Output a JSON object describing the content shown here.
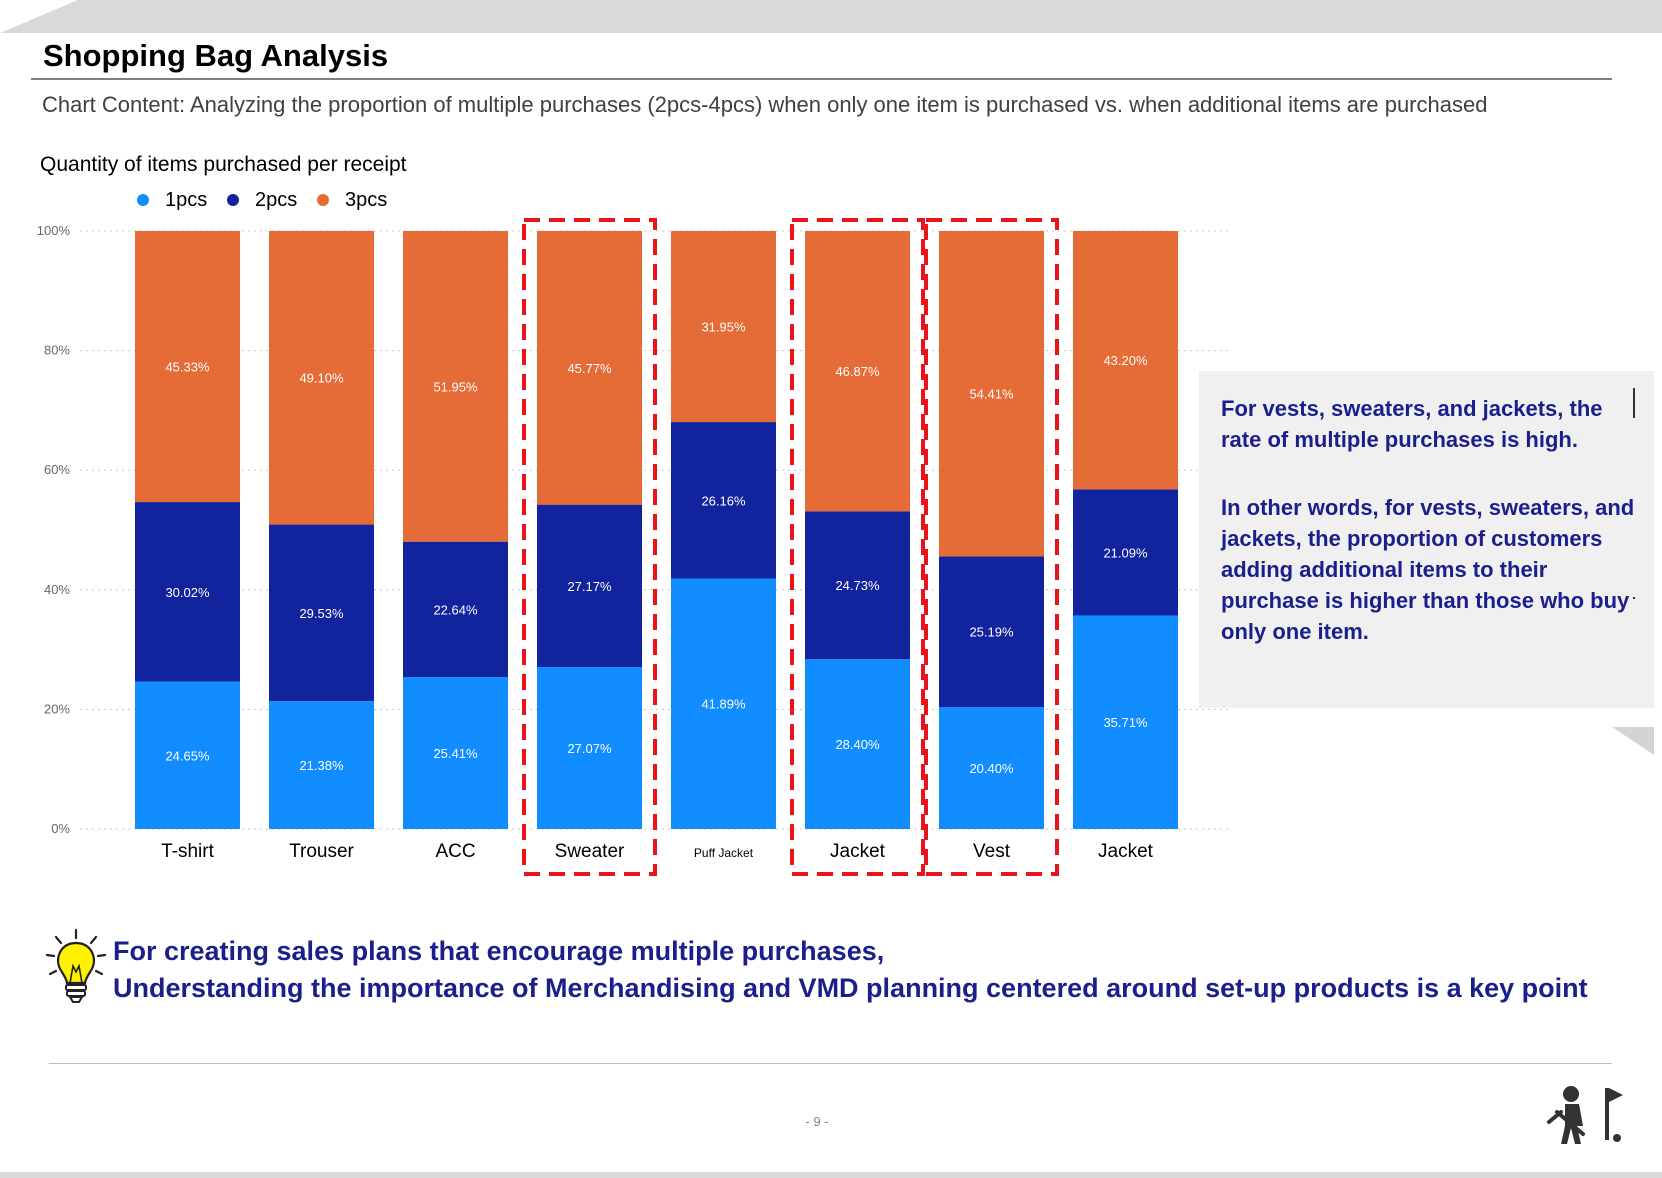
{
  "header": {
    "title": "Shopping Bag Analysis",
    "subtitle": "Chart Content: Analyzing the proportion of multiple purchases (2pcs-4pcs) when only one item is purchased vs. when additional items are purchased"
  },
  "chart_data": {
    "type": "bar",
    "stacked": true,
    "title": "Quantity of items purchased per receipt",
    "categories": [
      "T-shirt",
      "Trouser",
      "ACC",
      "Sweater",
      "Puff Jacket",
      "Jacket",
      "Vest",
      "Jacket"
    ],
    "series": [
      {
        "name": "1pcs",
        "color": "#118dff",
        "values": [
          24.65,
          21.38,
          25.41,
          27.07,
          41.89,
          28.4,
          20.4,
          35.71
        ],
        "labels": [
          "24.65%",
          "21.38%",
          "25.41%",
          "27.07%",
          "41.89%",
          "28.40%",
          "20.40%",
          "35.71%"
        ]
      },
      {
        "name": "2pcs",
        "color": "#12239e",
        "values": [
          30.02,
          29.53,
          22.64,
          27.17,
          26.16,
          24.73,
          25.19,
          21.09
        ],
        "labels": [
          "30.02%",
          "29.53%",
          "22.64%",
          "27.17%",
          "26.16%",
          "24.73%",
          "25.19%",
          "21.09%"
        ]
      },
      {
        "name": "3pcs",
        "color": "#e66c37",
        "values": [
          45.33,
          49.1,
          51.95,
          45.77,
          31.95,
          46.87,
          54.41,
          43.2
        ],
        "labels": [
          "45.33%",
          "49.10%",
          "51.95%",
          "45.77%",
          "31.95%",
          "46.87%",
          "54.41%",
          "43.20%"
        ]
      }
    ],
    "yticks": [
      "0%",
      "20%",
      "40%",
      "60%",
      "80%",
      "100%"
    ],
    "ylim": [
      0,
      100
    ],
    "grid": true,
    "legend": "top-left",
    "highlighted_categories": [
      3,
      5,
      6
    ],
    "highlight_color": "#e8141a"
  },
  "callout": {
    "line1": "For vests, sweaters, and jackets, the rate of multiple purchases is high.",
    "line2": "In other words, for vests, sweaters, and jackets, the proportion of customers adding additional items to their purchase is higher than those who buy only one item."
  },
  "conclusion": {
    "line1": "For creating sales plans that encourage multiple purchases,",
    "line2": "Understanding the importance of  Merchandising and VMD planning centered around set-up products is a key point",
    "color": "#1a1f8c"
  },
  "footer": {
    "page": "- 9 -"
  },
  "icons": {
    "bulb": "lightbulb-icon",
    "logo": "golfer-logo-icon"
  }
}
